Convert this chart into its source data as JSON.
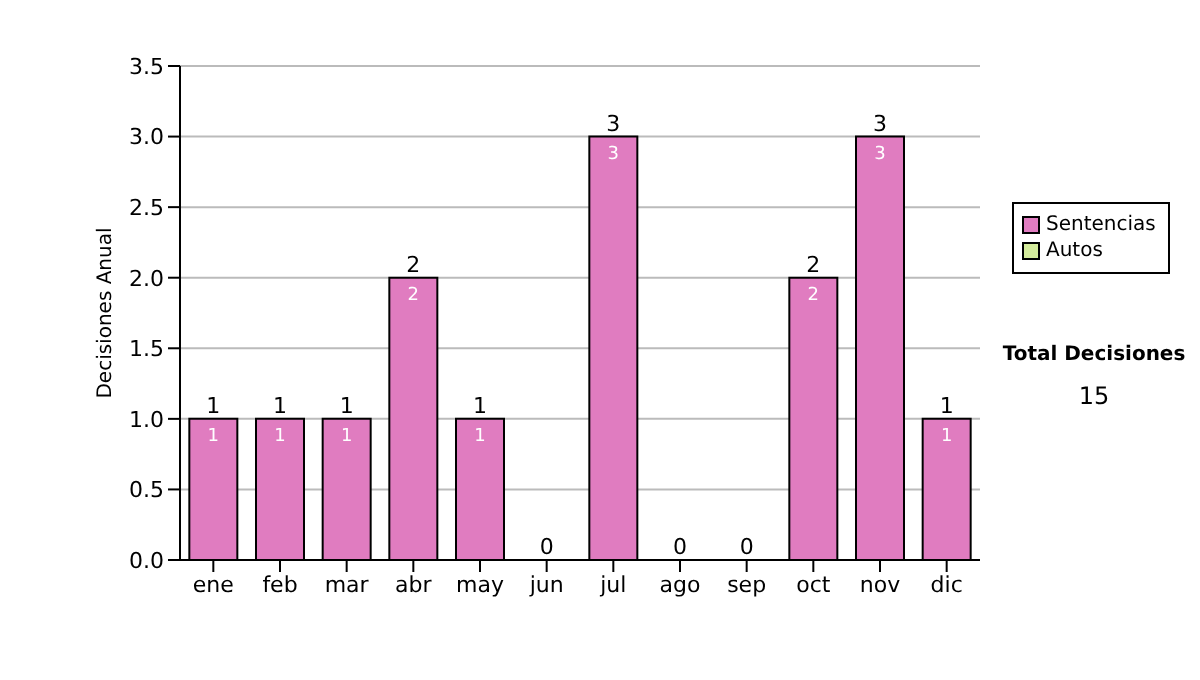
{
  "chart_data": {
    "type": "bar",
    "ylabel": "Decisiones Anual",
    "categories": [
      "ene",
      "feb",
      "mar",
      "abr",
      "may",
      "jun",
      "jul",
      "ago",
      "sep",
      "oct",
      "nov",
      "dic"
    ],
    "series": [
      {
        "name": "Sentencias",
        "color": "#e07cc0",
        "values": [
          1,
          1,
          1,
          2,
          1,
          0,
          3,
          0,
          0,
          2,
          3,
          1
        ],
        "value_labels": [
          "1",
          "1",
          "1",
          "2",
          "1",
          null,
          "3",
          null,
          null,
          "2",
          "3",
          "1"
        ]
      },
      {
        "name": "Autos",
        "color": "#d4ec9c",
        "values": [
          0,
          0,
          0,
          0,
          0,
          0,
          0,
          0,
          0,
          0,
          0,
          0
        ]
      }
    ],
    "stacked": true,
    "totals": [
      "1",
      "1",
      "1",
      "2",
      "1",
      "0",
      "3",
      "0",
      "0",
      "2",
      "3",
      "1"
    ],
    "ylim": [
      0,
      3.5
    ],
    "yticks": [
      {
        "value": 0,
        "label": "0.0"
      },
      {
        "value": 0.5,
        "label": "0.5"
      },
      {
        "value": 1,
        "label": "1.0"
      },
      {
        "value": 1.5,
        "label": "1.5"
      },
      {
        "value": 2,
        "label": "2.0"
      },
      {
        "value": 2.5,
        "label": "2.5"
      },
      {
        "value": 3,
        "label": "3.0"
      },
      {
        "value": 3.5,
        "label": "3.5"
      }
    ],
    "grid": "y",
    "legend": "right",
    "annotations": [
      "Total Decisiones",
      "15"
    ]
  }
}
